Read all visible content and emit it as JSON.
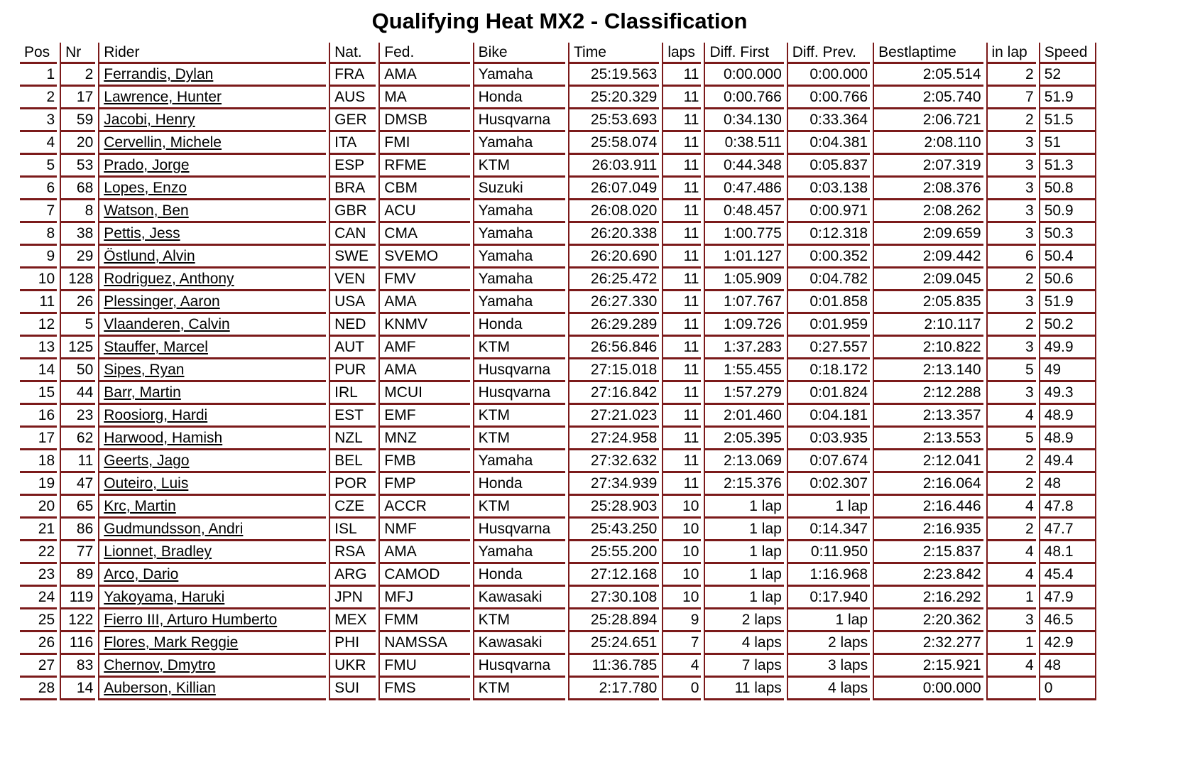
{
  "title": "Qualifying Heat MX2 - Classification",
  "colors": {
    "table_border": "#7b1a1a",
    "text": "#000000"
  },
  "table": {
    "columns": [
      {
        "key": "pos",
        "label": "Pos",
        "align": "right"
      },
      {
        "key": "nr",
        "label": "Nr",
        "align": "right"
      },
      {
        "key": "rider",
        "label": "Rider",
        "align": "left"
      },
      {
        "key": "nat",
        "label": "Nat.",
        "align": "left"
      },
      {
        "key": "fed",
        "label": "Fed.",
        "align": "left"
      },
      {
        "key": "bike",
        "label": "Bike",
        "align": "left"
      },
      {
        "key": "time",
        "label": "Time",
        "align": "right"
      },
      {
        "key": "laps",
        "label": "laps",
        "align": "right"
      },
      {
        "key": "diff_first",
        "label": "Diff. First",
        "align": "right"
      },
      {
        "key": "diff_prev",
        "label": "Diff. Prev.",
        "align": "right"
      },
      {
        "key": "bestlaptime",
        "label": "Bestlaptime",
        "align": "right"
      },
      {
        "key": "in_lap",
        "label": "in lap",
        "align": "right"
      },
      {
        "key": "speed",
        "label": "Speed",
        "align": "left"
      }
    ],
    "rows": [
      [
        "1",
        "2",
        "Ferrandis, Dylan",
        "FRA",
        "AMA",
        "Yamaha",
        "25:19.563",
        "11",
        "0:00.000",
        "0:00.000",
        "2:05.514",
        "2",
        "52"
      ],
      [
        "2",
        "17",
        "Lawrence, Hunter",
        "AUS",
        "MA",
        "Honda",
        "25:20.329",
        "11",
        "0:00.766",
        "0:00.766",
        "2:05.740",
        "7",
        "51.9"
      ],
      [
        "3",
        "59",
        "Jacobi, Henry",
        "GER",
        "DMSB",
        "Husqvarna",
        "25:53.693",
        "11",
        "0:34.130",
        "0:33.364",
        "2:06.721",
        "2",
        "51.5"
      ],
      [
        "4",
        "20",
        "Cervellin, Michele",
        "ITA",
        "FMI",
        "Yamaha",
        "25:58.074",
        "11",
        "0:38.511",
        "0:04.381",
        "2:08.110",
        "3",
        "51"
      ],
      [
        "5",
        "53",
        "Prado, Jorge",
        "ESP",
        "RFME",
        "KTM",
        "26:03.911",
        "11",
        "0:44.348",
        "0:05.837",
        "2:07.319",
        "3",
        "51.3"
      ],
      [
        "6",
        "68",
        "Lopes, Enzo",
        "BRA",
        "CBM",
        "Suzuki",
        "26:07.049",
        "11",
        "0:47.486",
        "0:03.138",
        "2:08.376",
        "3",
        "50.8"
      ],
      [
        "7",
        "8",
        "Watson, Ben",
        "GBR",
        "ACU",
        "Yamaha",
        "26:08.020",
        "11",
        "0:48.457",
        "0:00.971",
        "2:08.262",
        "3",
        "50.9"
      ],
      [
        "8",
        "38",
        "Pettis, Jess",
        "CAN",
        "CMA",
        "Yamaha",
        "26:20.338",
        "11",
        "1:00.775",
        "0:12.318",
        "2:09.659",
        "3",
        "50.3"
      ],
      [
        "9",
        "29",
        "Östlund, Alvin",
        "SWE",
        "SVEMO",
        "Yamaha",
        "26:20.690",
        "11",
        "1:01.127",
        "0:00.352",
        "2:09.442",
        "6",
        "50.4"
      ],
      [
        "10",
        "128",
        "Rodriguez, Anthony",
        "VEN",
        "FMV",
        "Yamaha",
        "26:25.472",
        "11",
        "1:05.909",
        "0:04.782",
        "2:09.045",
        "2",
        "50.6"
      ],
      [
        "11",
        "26",
        "Plessinger, Aaron",
        "USA",
        "AMA",
        "Yamaha",
        "26:27.330",
        "11",
        "1:07.767",
        "0:01.858",
        "2:05.835",
        "3",
        "51.9"
      ],
      [
        "12",
        "5",
        "Vlaanderen, Calvin",
        "NED",
        "KNMV",
        "Honda",
        "26:29.289",
        "11",
        "1:09.726",
        "0:01.959",
        "2:10.117",
        "2",
        "50.2"
      ],
      [
        "13",
        "125",
        "Stauffer, Marcel",
        "AUT",
        "AMF",
        "KTM",
        "26:56.846",
        "11",
        "1:37.283",
        "0:27.557",
        "2:10.822",
        "3",
        "49.9"
      ],
      [
        "14",
        "50",
        "Sipes, Ryan",
        "PUR",
        "AMA",
        "Husqvarna",
        "27:15.018",
        "11",
        "1:55.455",
        "0:18.172",
        "2:13.140",
        "5",
        "49"
      ],
      [
        "15",
        "44",
        "Barr, Martin",
        "IRL",
        "MCUI",
        "Husqvarna",
        "27:16.842",
        "11",
        "1:57.279",
        "0:01.824",
        "2:12.288",
        "3",
        "49.3"
      ],
      [
        "16",
        "23",
        "Roosiorg, Hardi",
        "EST",
        "EMF",
        "KTM",
        "27:21.023",
        "11",
        "2:01.460",
        "0:04.181",
        "2:13.357",
        "4",
        "48.9"
      ],
      [
        "17",
        "62",
        "Harwood, Hamish",
        "NZL",
        "MNZ",
        "KTM",
        "27:24.958",
        "11",
        "2:05.395",
        "0:03.935",
        "2:13.553",
        "5",
        "48.9"
      ],
      [
        "18",
        "11",
        "Geerts, Jago",
        "BEL",
        "FMB",
        "Yamaha",
        "27:32.632",
        "11",
        "2:13.069",
        "0:07.674",
        "2:12.041",
        "2",
        "49.4"
      ],
      [
        "19",
        "47",
        "Outeiro, Luis",
        "POR",
        "FMP",
        "Honda",
        "27:34.939",
        "11",
        "2:15.376",
        "0:02.307",
        "2:16.064",
        "2",
        "48"
      ],
      [
        "20",
        "65",
        "Krc, Martin",
        "CZE",
        "ACCR",
        "KTM",
        "25:28.903",
        "10",
        "1 lap",
        "1 lap",
        "2:16.446",
        "4",
        "47.8"
      ],
      [
        "21",
        "86",
        "Gudmundsson, Andri",
        "ISL",
        "NMF",
        "Husqvarna",
        "25:43.250",
        "10",
        "1 lap",
        "0:14.347",
        "2:16.935",
        "2",
        "47.7"
      ],
      [
        "22",
        "77",
        "Lionnet, Bradley",
        "RSA",
        "AMA",
        "Yamaha",
        "25:55.200",
        "10",
        "1 lap",
        "0:11.950",
        "2:15.837",
        "4",
        "48.1"
      ],
      [
        "23",
        "89",
        "Arco, Dario",
        "ARG",
        "CAMOD",
        "Honda",
        "27:12.168",
        "10",
        "1 lap",
        "1:16.968",
        "2:23.842",
        "4",
        "45.4"
      ],
      [
        "24",
        "119",
        "Yakoyama, Haruki",
        "JPN",
        "MFJ",
        "Kawasaki",
        "27:30.108",
        "10",
        "1 lap",
        "0:17.940",
        "2:16.292",
        "1",
        "47.9"
      ],
      [
        "25",
        "122",
        "Fierro III, Arturo Humberto",
        "MEX",
        "FMM",
        "KTM",
        "25:28.894",
        "9",
        "2 laps",
        "1 lap",
        "2:20.362",
        "3",
        "46.5"
      ],
      [
        "26",
        "116",
        "Flores, Mark Reggie",
        "PHI",
        "NAMSSA",
        "Kawasaki",
        "25:24.651",
        "7",
        "4 laps",
        "2 laps",
        "2:32.277",
        "1",
        "42.9"
      ],
      [
        "27",
        "83",
        "Chernov, Dmytro",
        "UKR",
        "FMU",
        "Husqvarna",
        "11:36.785",
        "4",
        "7 laps",
        "3 laps",
        "2:15.921",
        "4",
        "48"
      ],
      [
        "28",
        "14",
        "Auberson, Killian",
        "SUI",
        "FMS",
        "KTM",
        "2:17.780",
        "0",
        "11 laps",
        "4 laps",
        "0:00.000",
        "",
        "0"
      ]
    ]
  }
}
